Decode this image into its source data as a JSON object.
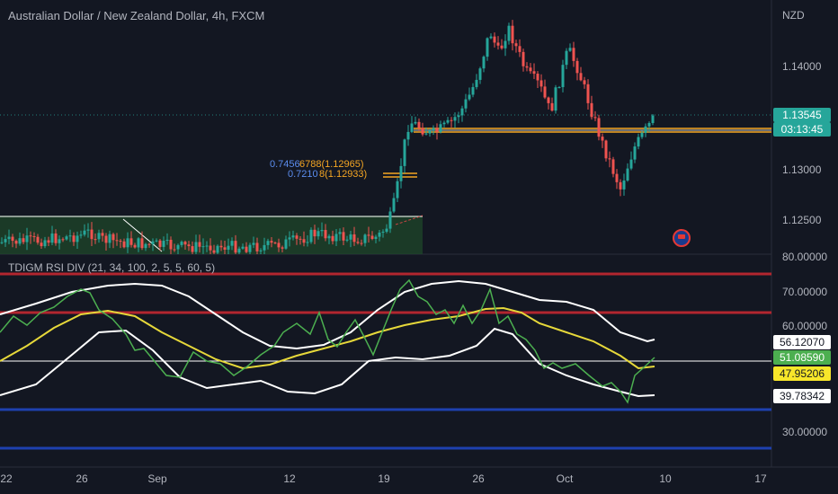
{
  "header": {
    "title": "Australian Dollar / New Zealand Dollar, 4h, FXCM",
    "currency": "NZD"
  },
  "indicator": {
    "label": "TDIGM RSI DIV (21, 34, 100, 2, 5, 5, 60, 5)"
  },
  "price_axis": {
    "ticks": [
      "1.14000",
      "1.13000",
      "1.12500"
    ],
    "last_price": "1.13545",
    "countdown": "03:13:45"
  },
  "rsi_axis": {
    "ticks": [
      "80.00000",
      "70.00000",
      "60.00000",
      "30.00000"
    ],
    "labels": {
      "upper_band": "56.12070",
      "rsi": "51.08590",
      "signal": "47.95206",
      "lower_band": "39.78342"
    }
  },
  "time_axis": {
    "ticks": [
      "22",
      "26",
      "Sep",
      "12",
      "19",
      "26",
      "Oct",
      "10",
      "17"
    ]
  },
  "fib_annotations": {
    "a": "0.7456",
    "b": "0.7210",
    "values": "6788(1.12965)",
    "values2": "8(1.12933)"
  },
  "colors": {
    "background": "#131722",
    "up": "#26a69a",
    "down": "#ef5350",
    "rsi_line": "#4caf50",
    "signal_line": "#e6d83a",
    "band_line": "#ffffff",
    "overbought": "#b2262f",
    "oversold": "#1e40af",
    "resistance": "#f5a623"
  }
}
